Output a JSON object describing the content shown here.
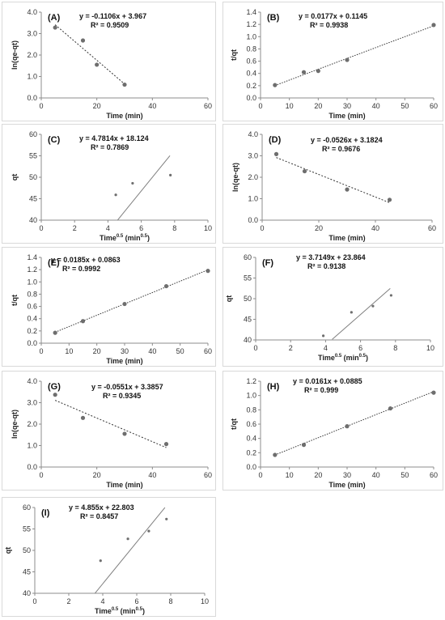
{
  "chart_data": [
    {
      "panel": "(A)",
      "type": "scatter",
      "xlabel": "Time (min)",
      "ylabel": "ln(qe-qt)",
      "xlim": [
        0,
        60
      ],
      "ylim": [
        0,
        4
      ],
      "xticks": [
        "0",
        "20",
        "40",
        "60"
      ],
      "yticks": [
        "0.0",
        "1.0",
        "2.0",
        "3.0",
        "4.0"
      ],
      "equation": "y = -0.1106x + 3.967",
      "r2": "R² = 0.9509",
      "x": [
        5,
        15,
        20,
        30
      ],
      "y": [
        3.28,
        2.68,
        1.55,
        0.62
      ],
      "trend": {
        "slope": -0.1106,
        "intercept": 3.967,
        "x_range": [
          5,
          30
        ],
        "style": "dashed"
      }
    },
    {
      "panel": "(B)",
      "type": "scatter",
      "xlabel": "Time (min)",
      "ylabel": "t/qt",
      "xlim": [
        0,
        60
      ],
      "ylim": [
        0,
        1.4
      ],
      "xticks": [
        "0",
        "10",
        "20",
        "30",
        "40",
        "50",
        "60"
      ],
      "yticks": [
        "0.0",
        "0.2",
        "0.4",
        "0.6",
        "0.8",
        "1.0",
        "1.2",
        "1.4"
      ],
      "equation": "y = 0.0177x + 0.1145",
      "r2": "R² = 0.9938",
      "x": [
        5,
        15,
        20,
        30,
        60
      ],
      "y": [
        0.21,
        0.42,
        0.44,
        0.62,
        1.19
      ],
      "trend": {
        "slope": 0.0177,
        "intercept": 0.1145,
        "x_range": [
          5,
          60
        ],
        "style": "dotted"
      }
    },
    {
      "panel": "(C)",
      "type": "scatter",
      "xlabel": "Time",
      "xlabel_sup": "0.5",
      "xlabel_tail": " (min",
      "xlabel_sup2": "0.5",
      "xlabel_end": ")",
      "ylabel": "qt",
      "xlim": [
        0,
        10
      ],
      "ylim": [
        40,
        60
      ],
      "xticks": [
        "0",
        "2",
        "4",
        "6",
        "8",
        "10"
      ],
      "yticks": [
        "40",
        "45",
        "50",
        "55",
        "60"
      ],
      "equation": "y = 4.7814x + 18.124",
      "r2": "R² = 0.7869",
      "x": [
        4.47,
        5.48,
        7.75
      ],
      "y": [
        45.9,
        48.6,
        50.5
      ],
      "trend": {
        "slope": 4.7814,
        "intercept": 18.124,
        "x_range": [
          4.58,
          7.72
        ],
        "style": "solid"
      }
    },
    {
      "panel": "(D)",
      "type": "scatter",
      "xlabel": "Time (min)",
      "ylabel": "ln(qe-qt)",
      "xlim": [
        0,
        60
      ],
      "ylim": [
        0,
        4
      ],
      "xticks": [
        "0",
        "20",
        "40",
        "60"
      ],
      "yticks": [
        "0.0",
        "1.0",
        "2.0",
        "3.0",
        "4.0"
      ],
      "equation": "y = -0.0526x + 3.1824",
      "r2": "R² = 0.9676",
      "x": [
        5,
        15,
        30,
        45
      ],
      "y": [
        3.08,
        2.28,
        1.43,
        0.95
      ],
      "trend": {
        "slope": -0.0526,
        "intercept": 3.1824,
        "x_range": [
          5,
          45
        ],
        "style": "dashed"
      }
    },
    {
      "panel": "(E)",
      "type": "scatter",
      "xlabel": "Time (min)",
      "ylabel": "t/qt",
      "xlim": [
        0,
        60
      ],
      "ylim": [
        0,
        1.4
      ],
      "xticks": [
        "0",
        "10",
        "20",
        "30",
        "40",
        "50",
        "60"
      ],
      "yticks": [
        "0.0",
        "0.2",
        "0.4",
        "0.6",
        "0.8",
        "1.0",
        "1.2",
        "1.4"
      ],
      "equation": "y = 0.0185x + 0.0863",
      "r2": "R² = 0.9992",
      "x": [
        5,
        15,
        30,
        45,
        60
      ],
      "y": [
        0.17,
        0.36,
        0.64,
        0.93,
        1.18
      ],
      "trend": {
        "slope": 0.0185,
        "intercept": 0.0863,
        "x_range": [
          5,
          60
        ],
        "style": "dotted"
      }
    },
    {
      "panel": "(F)",
      "type": "scatter",
      "xlabel": "Time",
      "xlabel_sup": "0.5",
      "xlabel_tail": " (min",
      "xlabel_sup2": "0.5",
      "xlabel_end": ")",
      "ylabel": "qt",
      "xlim": [
        0,
        10
      ],
      "ylim": [
        40,
        60
      ],
      "xticks": [
        "0",
        "2",
        "4",
        "6",
        "8",
        "10"
      ],
      "yticks": [
        "40",
        "45",
        "50",
        "55",
        "60"
      ],
      "equation": "y = 3.7149x + 23.864",
      "r2": "R² = 0.9138",
      "x": [
        3.87,
        5.48,
        6.71,
        7.75
      ],
      "y": [
        41.0,
        46.7,
        48.2,
        50.8
      ],
      "trend": {
        "slope": 3.7149,
        "intercept": 23.864,
        "x_range": [
          4.38,
          7.7
        ],
        "style": "solid"
      }
    },
    {
      "panel": "(G)",
      "type": "scatter",
      "xlabel": "Time (min)",
      "ylabel": "ln(qe-qt)",
      "xlim": [
        0,
        60
      ],
      "ylim": [
        0,
        4
      ],
      "xticks": [
        "0",
        "20",
        "40",
        "60"
      ],
      "yticks": [
        "0.0",
        "1.0",
        "2.0",
        "3.0",
        "4.0"
      ],
      "equation": "y = -0.0551x + 3.3857",
      "r2": "R² = 0.9345",
      "x": [
        5,
        15,
        30,
        45
      ],
      "y": [
        3.37,
        2.29,
        1.55,
        1.07
      ],
      "trend": {
        "slope": -0.0551,
        "intercept": 3.3857,
        "x_range": [
          5,
          45
        ],
        "style": "dashed"
      }
    },
    {
      "panel": "(H)",
      "type": "scatter",
      "xlabel": "Time (min)",
      "ylabel": "t/qt",
      "xlim": [
        0,
        60
      ],
      "ylim": [
        0,
        1.2
      ],
      "xticks": [
        "0",
        "10",
        "20",
        "30",
        "40",
        "50",
        "60"
      ],
      "yticks": [
        "0.0",
        "0.2",
        "0.4",
        "0.6",
        "0.8",
        "1.0",
        "1.2"
      ],
      "equation": "y = 0.0161x + 0.0885",
      "r2": "R² = 0.999",
      "x": [
        5,
        15,
        30,
        45,
        60
      ],
      "y": [
        0.17,
        0.31,
        0.57,
        0.82,
        1.04
      ],
      "trend": {
        "slope": 0.0161,
        "intercept": 0.0885,
        "x_range": [
          5,
          60
        ],
        "style": "dotted"
      }
    },
    {
      "panel": "(I)",
      "type": "scatter",
      "xlabel": "Time",
      "xlabel_sup": "0.5",
      "xlabel_tail": " (min",
      "xlabel_sup2": "0.5",
      "xlabel_end": ")",
      "ylabel": "qt",
      "xlim": [
        0,
        10
      ],
      "ylim": [
        40,
        60
      ],
      "xticks": [
        "0",
        "2",
        "4",
        "6",
        "8",
        "10"
      ],
      "yticks": [
        "40",
        "45",
        "50",
        "55",
        "60"
      ],
      "equation": "y = 4.855x + 22.803",
      "r2": "R² = 0.8457",
      "x": [
        3.87,
        5.48,
        6.71,
        7.75
      ],
      "y": [
        47.6,
        52.7,
        54.5,
        57.3
      ],
      "trend": {
        "slope": 4.855,
        "intercept": 22.803,
        "x_range": [
          3.54,
          7.66
        ],
        "style": "solid"
      }
    }
  ]
}
